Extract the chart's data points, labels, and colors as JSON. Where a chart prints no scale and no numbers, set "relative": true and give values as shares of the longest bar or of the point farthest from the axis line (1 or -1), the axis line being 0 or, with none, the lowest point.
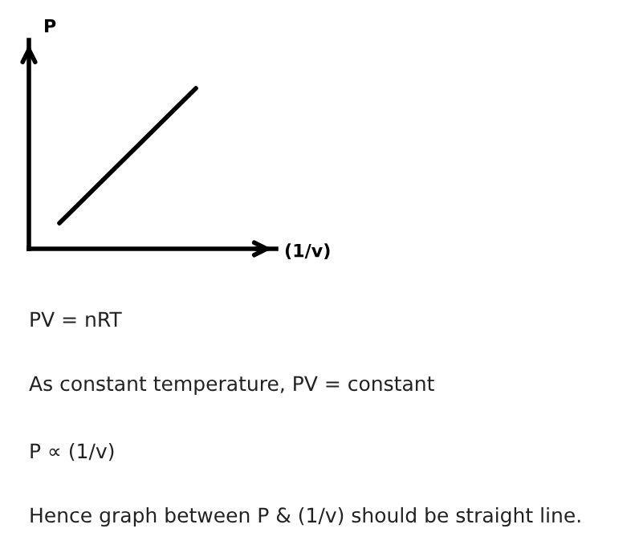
{
  "chart_data": {
    "type": "line",
    "relative": true,
    "xlabel": "(1/v)",
    "ylabel": "P",
    "categories": [
      null,
      null
    ],
    "series": [
      {
        "color": "#000000",
        "values": [
          0.16,
          1
        ]
      }
    ],
    "grid": false,
    "marker": "none",
    "line_style": "solid",
    "annotations": [
      "PV = nRT",
      "As constant temperature, PV = constant",
      "P ∝ (1/v)",
      "Hence graph between P & (1/v) should be straight line."
    ]
  }
}
